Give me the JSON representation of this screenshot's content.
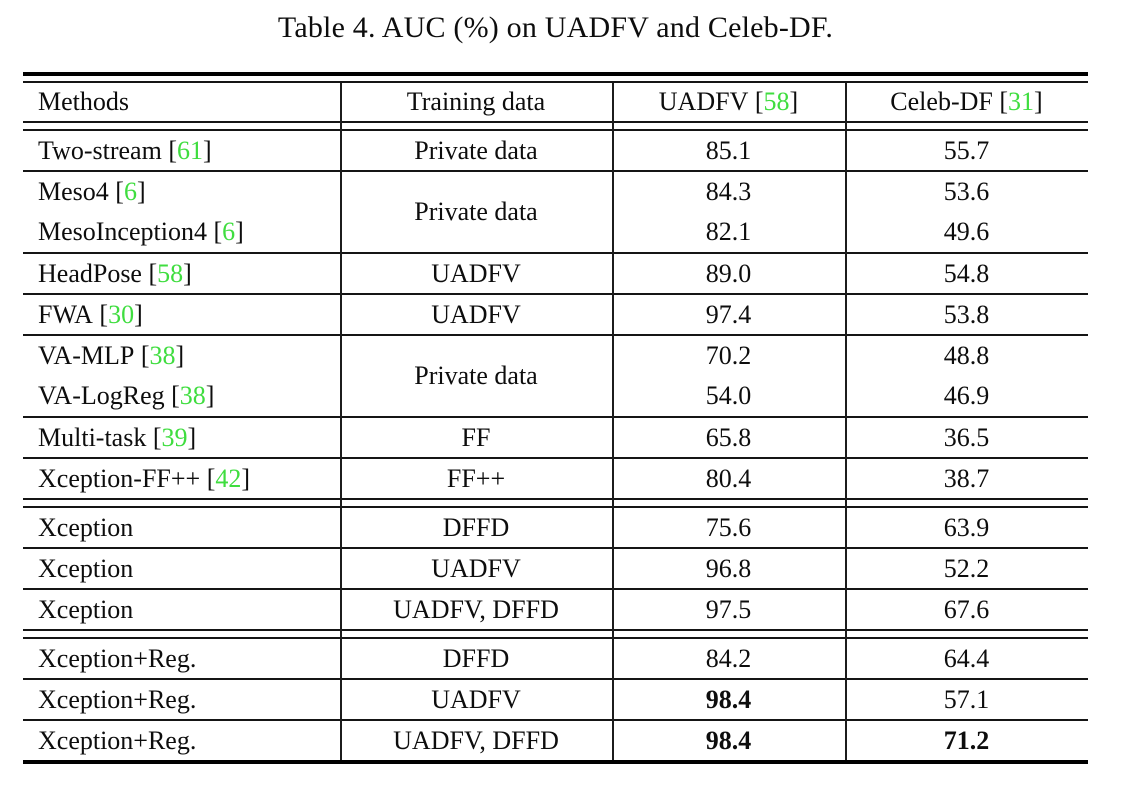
{
  "title": "Table 4. AUC (%) on UADFV and Celeb-DF.",
  "punct": {
    "bracket_open": "[",
    "bracket_close": "]"
  },
  "colors": {
    "citation_green": "#3fdd3f",
    "rule": "#151515",
    "text": "#0d0d0d"
  },
  "header": {
    "methods": "Methods",
    "training": "Training data",
    "uadfv": {
      "name": "UADFV",
      "cite": "58"
    },
    "celeb": {
      "name": "Celeb-DF",
      "cite": "31"
    }
  },
  "blocks": [
    {
      "methods": [
        {
          "name": "Two-stream",
          "cite": "61"
        }
      ],
      "training": "Private data",
      "uadfv": [
        {
          "v": "85.1",
          "bold": false
        }
      ],
      "celeb": [
        {
          "v": "55.7",
          "bold": false
        }
      ],
      "sep": "single"
    },
    {
      "methods": [
        {
          "name": "Meso4",
          "cite": "6"
        },
        {
          "name": "MesoInception4",
          "cite": "6"
        }
      ],
      "training": "Private data",
      "uadfv": [
        {
          "v": "84.3",
          "bold": false
        },
        {
          "v": "82.1",
          "bold": false
        }
      ],
      "celeb": [
        {
          "v": "53.6",
          "bold": false
        },
        {
          "v": "49.6",
          "bold": false
        }
      ],
      "sep": "single"
    },
    {
      "methods": [
        {
          "name": "HeadPose",
          "cite": "58"
        }
      ],
      "training": "UADFV",
      "uadfv": [
        {
          "v": "89.0",
          "bold": false
        }
      ],
      "celeb": [
        {
          "v": "54.8",
          "bold": false
        }
      ],
      "sep": "single"
    },
    {
      "methods": [
        {
          "name": "FWA",
          "cite": "30"
        }
      ],
      "training": "UADFV",
      "uadfv": [
        {
          "v": "97.4",
          "bold": false
        }
      ],
      "celeb": [
        {
          "v": "53.8",
          "bold": false
        }
      ],
      "sep": "single"
    },
    {
      "methods": [
        {
          "name": "VA-MLP",
          "cite": "38"
        },
        {
          "name": "VA-LogReg",
          "cite": "38"
        }
      ],
      "training": "Private data",
      "uadfv": [
        {
          "v": "70.2",
          "bold": false
        },
        {
          "v": "54.0",
          "bold": false
        }
      ],
      "celeb": [
        {
          "v": "48.8",
          "bold": false
        },
        {
          "v": "46.9",
          "bold": false
        }
      ],
      "sep": "single"
    },
    {
      "methods": [
        {
          "name": "Multi-task",
          "cite": "39"
        }
      ],
      "training": "FF",
      "uadfv": [
        {
          "v": "65.8",
          "bold": false
        }
      ],
      "celeb": [
        {
          "v": "36.5",
          "bold": false
        }
      ],
      "sep": "single"
    },
    {
      "methods": [
        {
          "name": "Xception-FF++",
          "cite": "42"
        }
      ],
      "training": "FF++",
      "uadfv": [
        {
          "v": "80.4",
          "bold": false
        }
      ],
      "celeb": [
        {
          "v": "38.7",
          "bold": false
        }
      ],
      "sep": "double"
    },
    {
      "methods": [
        {
          "name": "Xception",
          "cite": null
        }
      ],
      "training": "DFFD",
      "uadfv": [
        {
          "v": "75.6",
          "bold": false
        }
      ],
      "celeb": [
        {
          "v": "63.9",
          "bold": false
        }
      ],
      "sep": "single"
    },
    {
      "methods": [
        {
          "name": "Xception",
          "cite": null
        }
      ],
      "training": "UADFV",
      "uadfv": [
        {
          "v": "96.8",
          "bold": false
        }
      ],
      "celeb": [
        {
          "v": "52.2",
          "bold": false
        }
      ],
      "sep": "single"
    },
    {
      "methods": [
        {
          "name": "Xception",
          "cite": null
        }
      ],
      "training": "UADFV, DFFD",
      "uadfv": [
        {
          "v": "97.5",
          "bold": false
        }
      ],
      "celeb": [
        {
          "v": "67.6",
          "bold": false
        }
      ],
      "sep": "double"
    },
    {
      "methods": [
        {
          "name": "Xception+Reg.",
          "cite": null
        }
      ],
      "training": "DFFD",
      "uadfv": [
        {
          "v": "84.2",
          "bold": false
        }
      ],
      "celeb": [
        {
          "v": "64.4",
          "bold": false
        }
      ],
      "sep": "single"
    },
    {
      "methods": [
        {
          "name": "Xception+Reg.",
          "cite": null
        }
      ],
      "training": "UADFV",
      "uadfv": [
        {
          "v": "98.4",
          "bold": true
        }
      ],
      "celeb": [
        {
          "v": "57.1",
          "bold": false
        }
      ],
      "sep": "single"
    },
    {
      "methods": [
        {
          "name": "Xception+Reg.",
          "cite": null
        }
      ],
      "training": "UADFV, DFFD",
      "uadfv": [
        {
          "v": "98.4",
          "bold": true
        }
      ],
      "celeb": [
        {
          "v": "71.2",
          "bold": true
        }
      ],
      "sep": "none"
    }
  ],
  "chart_data": {
    "type": "table",
    "title": "Table 4. AUC (%) on UADFV and Celeb-DF.",
    "columns": [
      "Methods",
      "Training data",
      "UADFV [58]",
      "Celeb-DF [31]"
    ],
    "rows": [
      [
        "Two-stream [61]",
        "Private data",
        85.1,
        55.7
      ],
      [
        "Meso4 [6]",
        "Private data",
        84.3,
        53.6
      ],
      [
        "MesoInception4 [6]",
        "Private data",
        82.1,
        49.6
      ],
      [
        "HeadPose [58]",
        "UADFV",
        89.0,
        54.8
      ],
      [
        "FWA [30]",
        "UADFV",
        97.4,
        53.8
      ],
      [
        "VA-MLP [38]",
        "Private data",
        70.2,
        48.8
      ],
      [
        "VA-LogReg [38]",
        "Private data",
        54.0,
        46.9
      ],
      [
        "Multi-task [39]",
        "FF",
        65.8,
        36.5
      ],
      [
        "Xception-FF++ [42]",
        "FF++",
        80.4,
        38.7
      ],
      [
        "Xception",
        "DFFD",
        75.6,
        63.9
      ],
      [
        "Xception",
        "UADFV",
        96.8,
        52.2
      ],
      [
        "Xception",
        "UADFV, DFFD",
        97.5,
        67.6
      ],
      [
        "Xception+Reg.",
        "DFFD",
        84.2,
        64.4
      ],
      [
        "Xception+Reg.",
        "UADFV",
        98.4,
        57.1
      ],
      [
        "Xception+Reg.",
        "UADFV, DFFD",
        98.4,
        71.2
      ]
    ]
  }
}
